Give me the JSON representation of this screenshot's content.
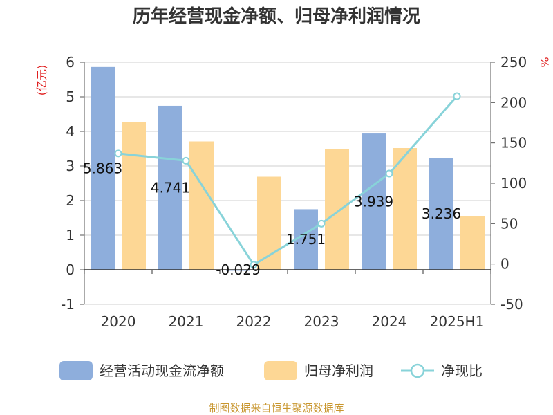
{
  "chart_data": {
    "type": "bar",
    "title": "历年经营现金净额、归母净利润情况",
    "categories": [
      "2020",
      "2021",
      "2022",
      "2023",
      "2024",
      "2025H1"
    ],
    "y_left_unit": "(亿元)",
    "y_right_unit": "%",
    "y_left_ticks": [
      "6",
      "5",
      "4",
      "3",
      "2",
      "1",
      "0",
      "-1"
    ],
    "y_right_ticks": [
      "250",
      "200",
      "150",
      "100",
      "50",
      "0",
      "-50"
    ],
    "ylim_left": [
      -1,
      6
    ],
    "ylim_right": [
      -50,
      250
    ],
    "series": [
      {
        "name": "经营活动现金流净额",
        "kind": "bar",
        "axis": "left",
        "color": "#8eaedc",
        "values": [
          5.863,
          4.741,
          -0.029,
          1.751,
          3.939,
          3.236
        ],
        "labels": [
          "5.863",
          "4.741",
          "-0.029",
          "1.751",
          "3.939",
          "3.236"
        ]
      },
      {
        "name": "归母净利润",
        "kind": "bar",
        "axis": "left",
        "color": "#fdd795",
        "values": [
          4.27,
          3.71,
          2.69,
          3.49,
          3.52,
          1.55
        ]
      },
      {
        "name": "净现比",
        "kind": "line",
        "axis": "right",
        "color": "#88d3d9",
        "values": [
          137,
          128,
          -1,
          50,
          112,
          208
        ]
      }
    ],
    "grid": true,
    "legend_position": "bottom"
  },
  "source_text": "制图数据来自恒生聚源数据库"
}
